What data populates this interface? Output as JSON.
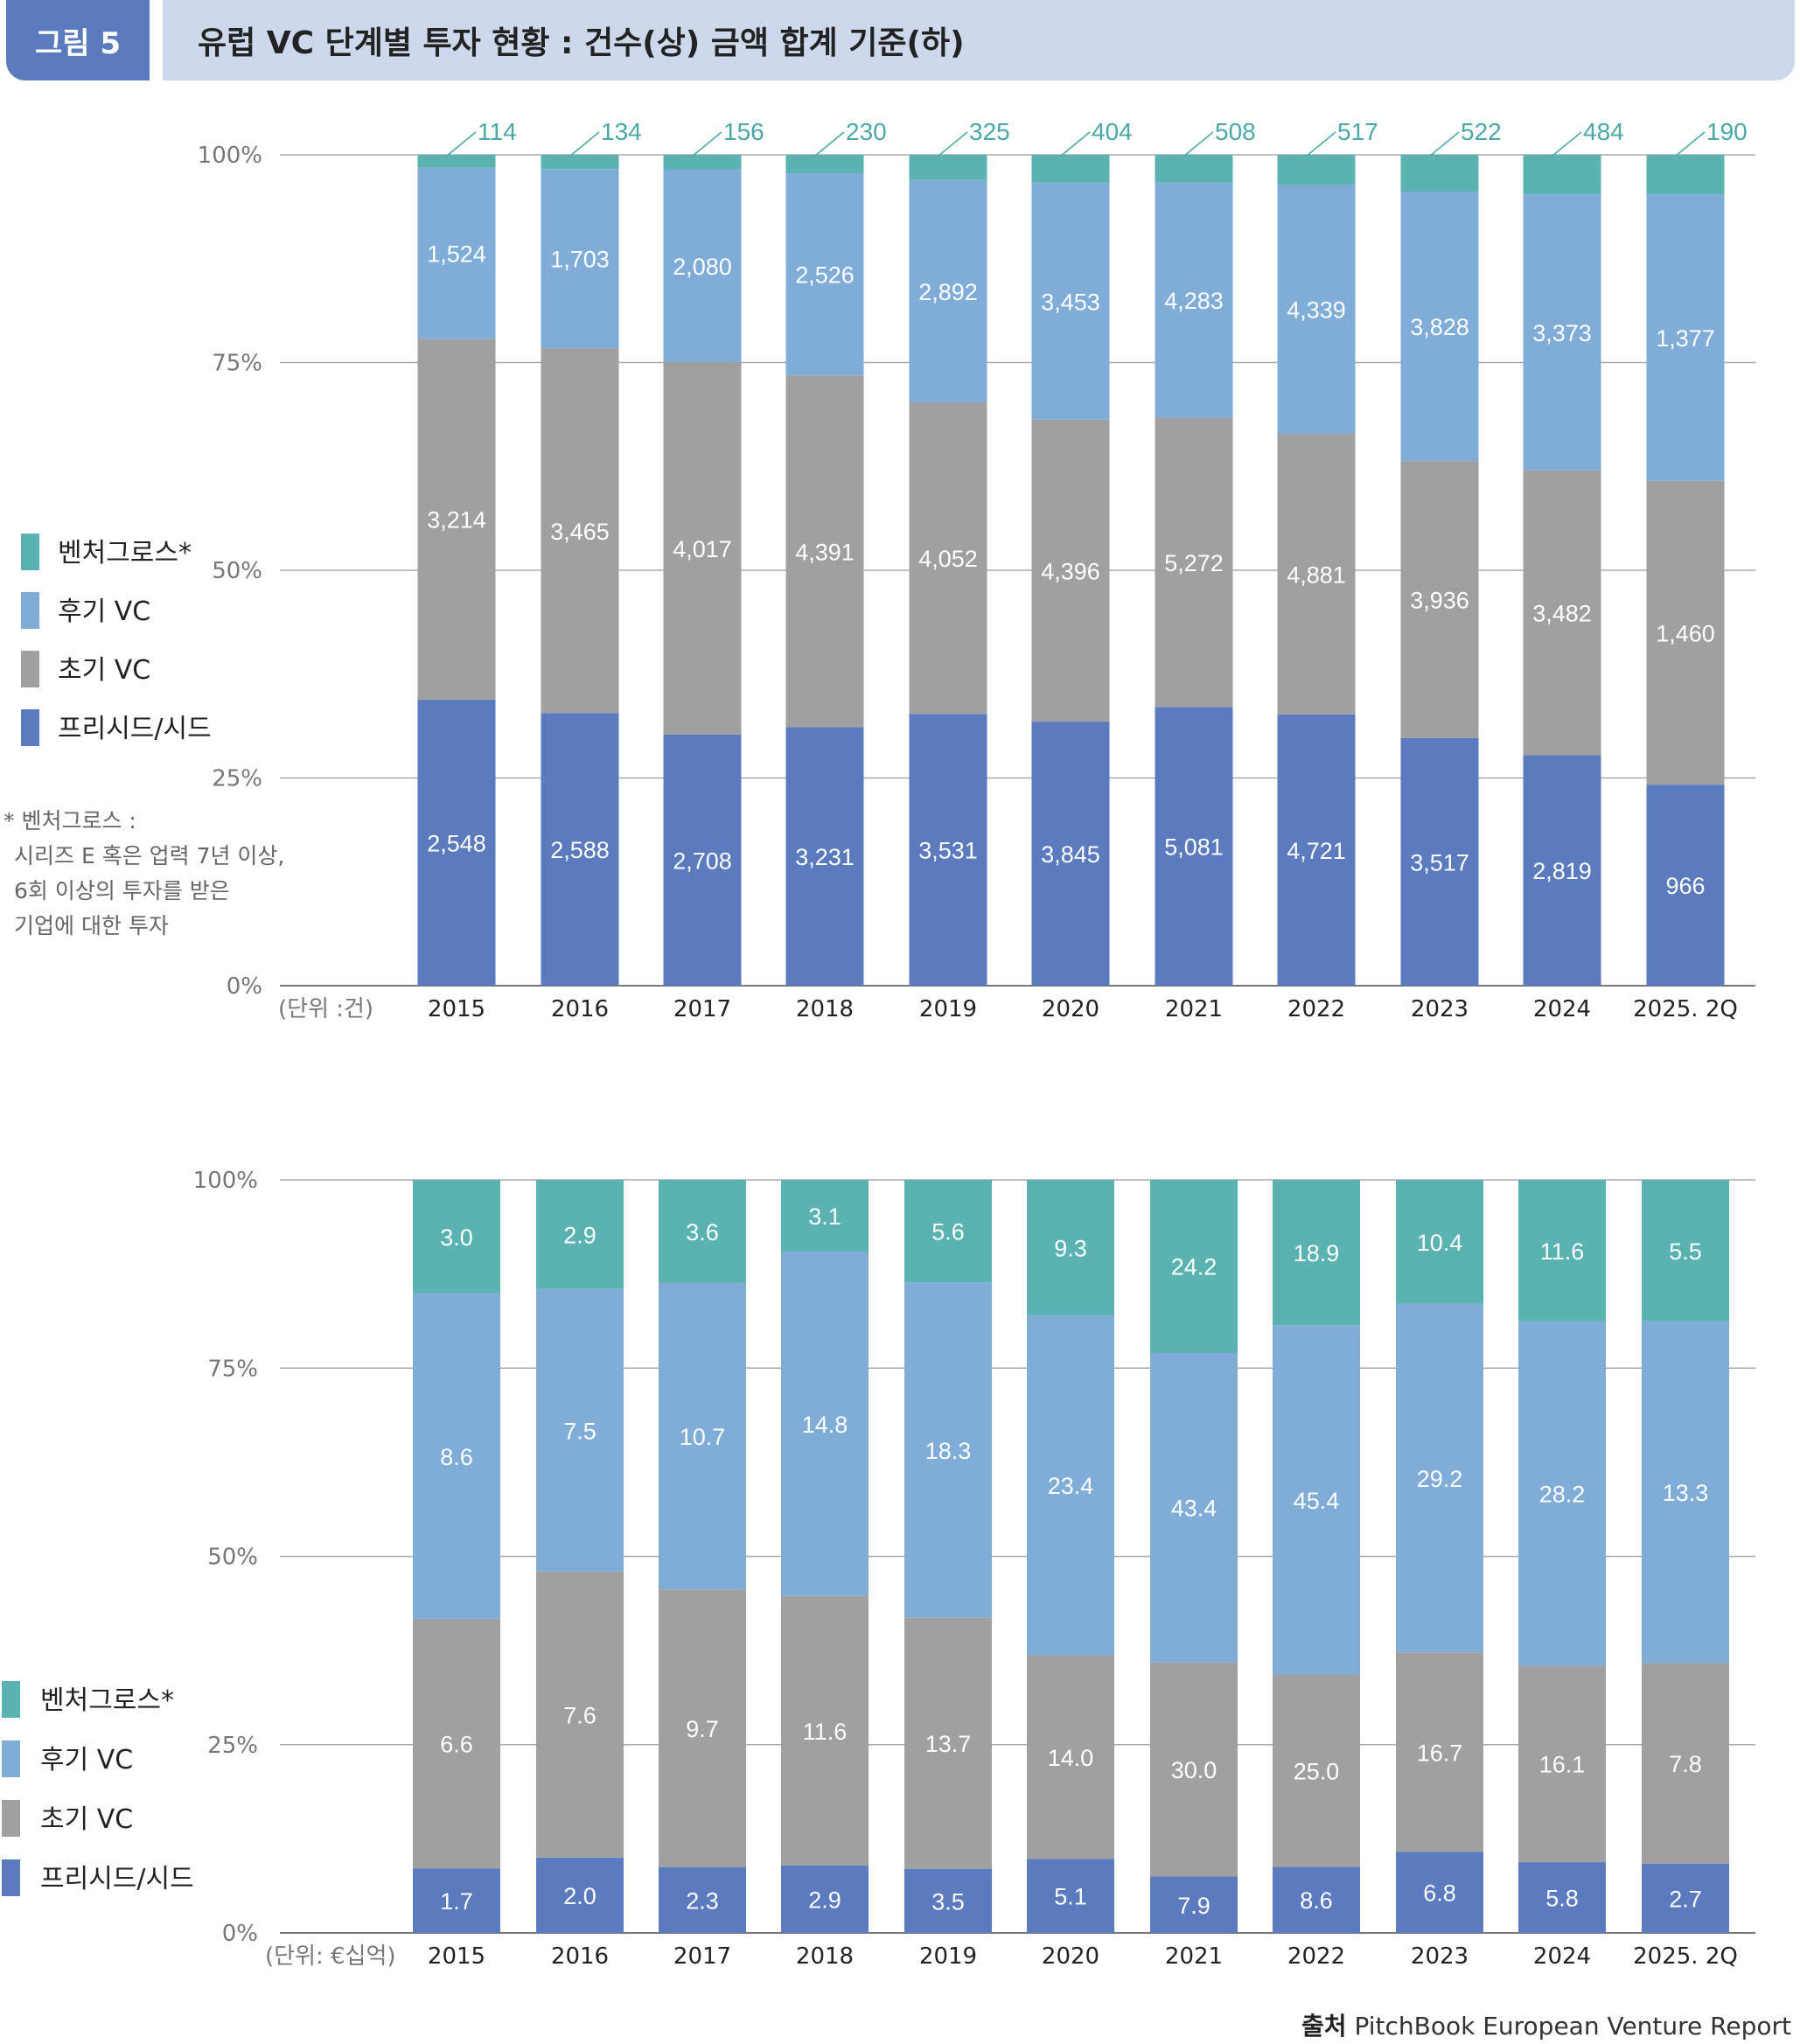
{
  "header": {
    "badge": "그림 5",
    "title": "유럽 VC 단계별 투자 현황 : 건수(상) 금액 합계 기준(하)"
  },
  "legend": [
    {
      "label": "벤처그로스*",
      "color": "#5BB3B1"
    },
    {
      "label": "후기 VC",
      "color": "#7FADD8"
    },
    {
      "label": "초기 VC",
      "color": "#A0A0A0"
    },
    {
      "label": "프리시드/시드",
      "color": "#5B7BBE"
    }
  ],
  "footnote": [
    "* 벤처그로스 :",
    "시리즈 E 혹은 업력 7년 이상,",
    "6회 이상의 투자를 받은",
    "기업에 대한 투자"
  ],
  "source": {
    "label": "출처",
    "text": "PitchBook European Venture Report"
  },
  "chart_data": [
    {
      "type": "bar",
      "stacked": "percent",
      "title": "건수",
      "unit_label": "(단위 :건)",
      "categories": [
        "2015",
        "2016",
        "2017",
        "2018",
        "2019",
        "2020",
        "2021",
        "2022",
        "2023",
        "2024",
        "2025. 2Q"
      ],
      "yticks": [
        "0%",
        "25%",
        "50%",
        "75%",
        "100%"
      ],
      "ylim": [
        0,
        100
      ],
      "grid": true,
      "legend_position": "left",
      "series": [
        {
          "name": "프리시드/시드",
          "color": "#5B7BBE",
          "values": [
            2548,
            2588,
            2708,
            3231,
            3531,
            3845,
            5081,
            4721,
            3517,
            2819,
            966
          ],
          "labels": [
            "2,548",
            "2,588",
            "2,708",
            "3,231",
            "3,531",
            "3,845",
            "5,081",
            "4,721",
            "3,517",
            "2,819",
            "966"
          ]
        },
        {
          "name": "초기 VC",
          "color": "#A0A0A0",
          "values": [
            3214,
            3465,
            4017,
            4391,
            4052,
            4396,
            5272,
            4881,
            3936,
            3482,
            1460
          ],
          "labels": [
            "3,214",
            "3,465",
            "4,017",
            "4,391",
            "4,052",
            "4,396",
            "5,272",
            "4,881",
            "3,936",
            "3,482",
            "1,460"
          ]
        },
        {
          "name": "후기 VC",
          "color": "#7FADD8",
          "values": [
            1524,
            1703,
            2080,
            2526,
            2892,
            3453,
            4283,
            4339,
            3828,
            3373,
            1377
          ],
          "labels": [
            "1,524",
            "1,703",
            "2,080",
            "2,526",
            "2,892",
            "3,453",
            "4,283",
            "4,339",
            "3,828",
            "3,373",
            "1,377"
          ]
        },
        {
          "name": "벤처그로스*",
          "color": "#5BB3B1",
          "values": [
            114,
            134,
            156,
            230,
            325,
            404,
            508,
            517,
            522,
            484,
            190
          ],
          "labels": [
            "114",
            "134",
            "156",
            "230",
            "325",
            "404",
            "508",
            "517",
            "522",
            "484",
            "190"
          ],
          "label_position": "above"
        }
      ]
    },
    {
      "type": "bar",
      "stacked": "percent",
      "title": "금액 합계",
      "unit_label": "(단위: €십억)",
      "categories": [
        "2015",
        "2016",
        "2017",
        "2018",
        "2019",
        "2020",
        "2021",
        "2022",
        "2023",
        "2024",
        "2025. 2Q"
      ],
      "yticks": [
        "0%",
        "25%",
        "50%",
        "75%",
        "100%"
      ],
      "ylim": [
        0,
        100
      ],
      "grid": true,
      "legend_position": "left",
      "series": [
        {
          "name": "프리시드/시드",
          "color": "#5B7BBE",
          "values": [
            1.7,
            2.0,
            2.3,
            2.9,
            3.5,
            5.1,
            7.9,
            8.6,
            6.8,
            5.8,
            2.7
          ],
          "labels": [
            "1.7",
            "2.0",
            "2.3",
            "2.9",
            "3.5",
            "5.1",
            "7.9",
            "8.6",
            "6.8",
            "5.8",
            "2.7"
          ]
        },
        {
          "name": "초기 VC",
          "color": "#A0A0A0",
          "values": [
            6.6,
            7.6,
            9.7,
            11.6,
            13.7,
            14.0,
            30.0,
            25.0,
            16.7,
            16.1,
            7.8
          ],
          "labels": [
            "6.6",
            "7.6",
            "9.7",
            "11.6",
            "13.7",
            "14.0",
            "30.0",
            "25.0",
            "16.7",
            "16.1",
            "7.8"
          ]
        },
        {
          "name": "후기 VC",
          "color": "#7FADD8",
          "values": [
            8.6,
            7.5,
            10.7,
            14.8,
            18.3,
            23.4,
            43.4,
            45.4,
            29.2,
            28.2,
            13.3
          ],
          "labels": [
            "8.6",
            "7.5",
            "10.7",
            "14.8",
            "18.3",
            "23.4",
            "43.4",
            "45.4",
            "29.2",
            "28.2",
            "13.3"
          ]
        },
        {
          "name": "벤처그로스*",
          "color": "#5BB3B1",
          "values": [
            3.0,
            2.9,
            3.6,
            3.1,
            5.6,
            9.3,
            24.2,
            18.9,
            10.4,
            11.6,
            5.5
          ],
          "labels": [
            "3.0",
            "2.9",
            "3.6",
            "3.1",
            "5.6",
            "9.3",
            "24.2",
            "18.9",
            "10.4",
            "11.6",
            "5.5"
          ]
        }
      ]
    }
  ]
}
